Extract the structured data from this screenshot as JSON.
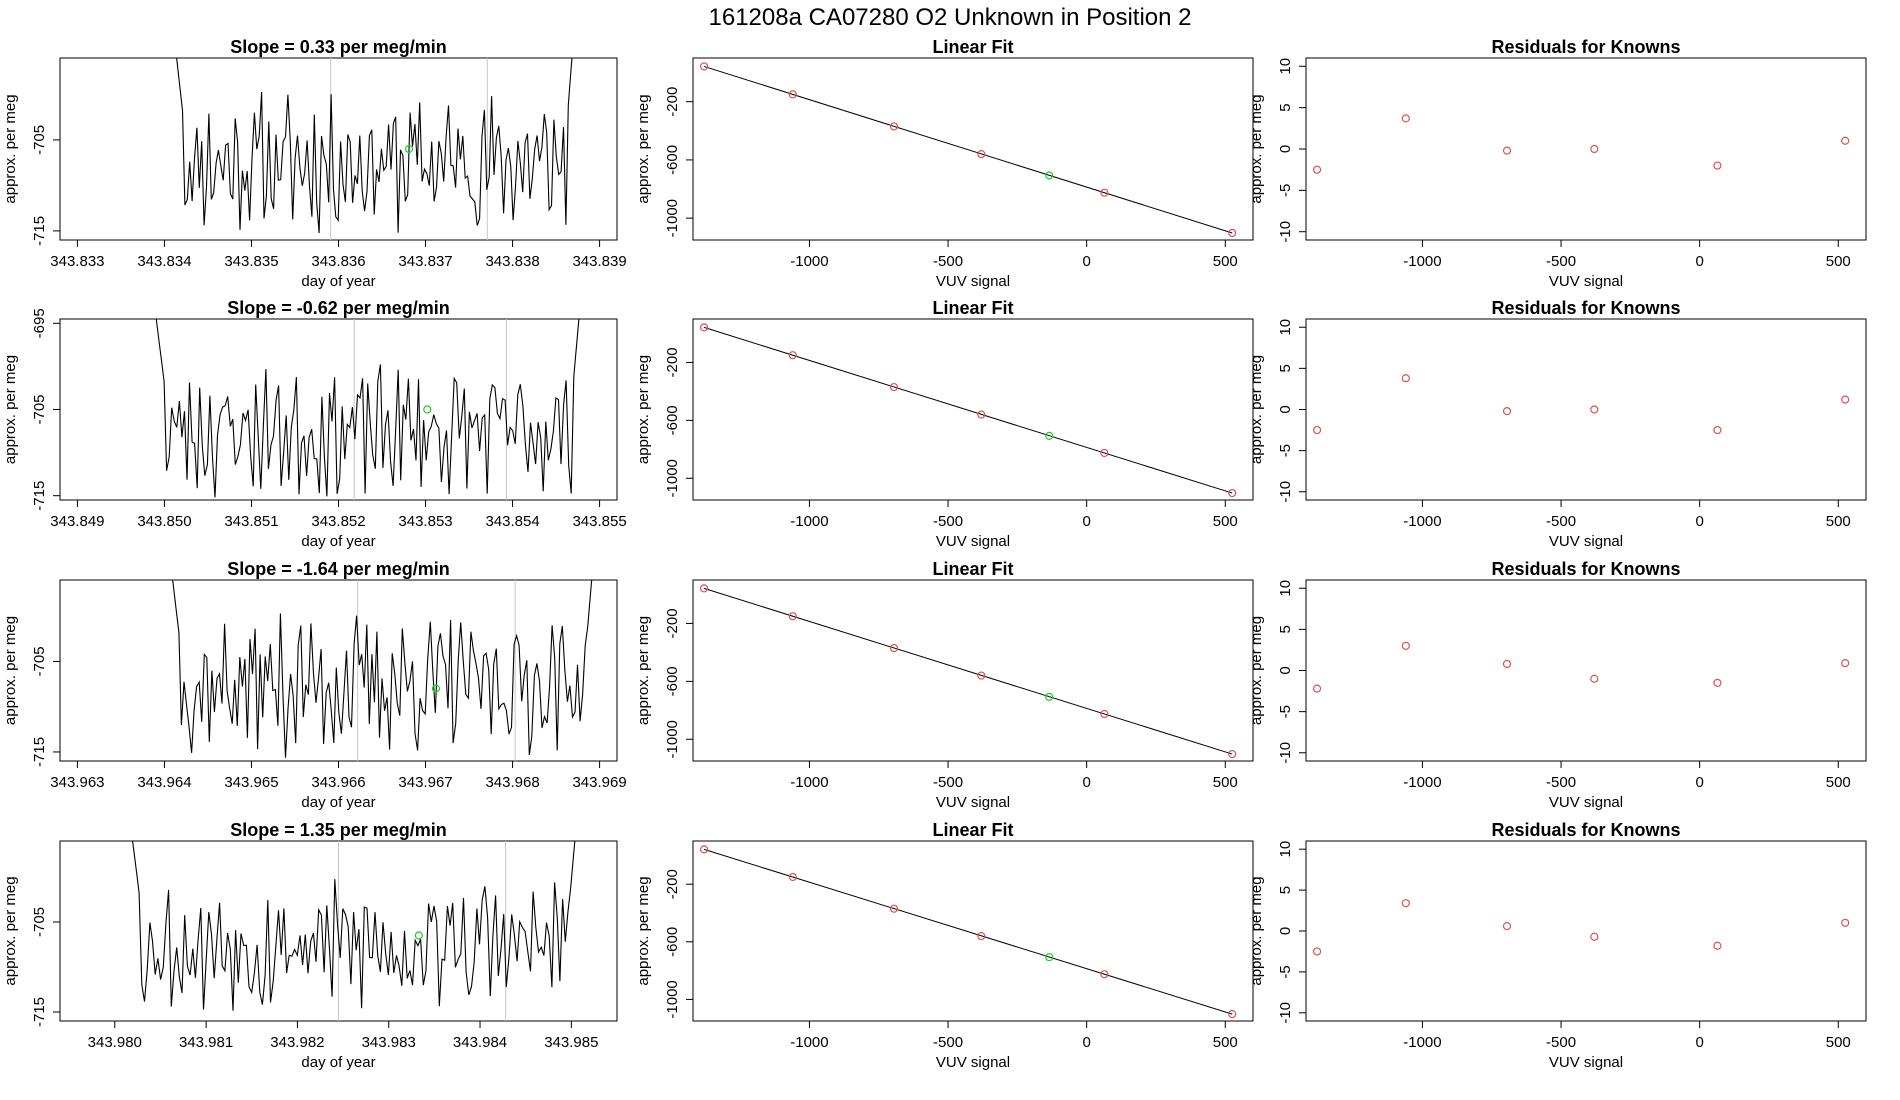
{
  "page_title": "161208a      CA07280    O2 Unknown in Position  2",
  "colors": {
    "known": "#d9534f",
    "unknown": "#22cc22",
    "line": "#000000",
    "marker": "#c8c8c8"
  },
  "chart_data": [
    {
      "row": 1,
      "timeseries": {
        "type": "line",
        "title": "Slope =  0.33  per meg/min",
        "xlabel": "day of year",
        "ylabel": "approx. per meg",
        "xlim": [
          343.8328,
          343.8392
        ],
        "ylim": [
          -716,
          -696
        ],
        "xticks": [
          "343.833",
          "343.834",
          "343.835",
          "343.836",
          "343.837",
          "343.838",
          "343.839"
        ],
        "yticks": [
          "-705",
          "-715"
        ],
        "ytick_values": [
          -705,
          -715
        ],
        "x_start": 343.83407,
        "x_end": 343.83875,
        "seed": 11,
        "vlines": [
          343.83591,
          343.83771
        ],
        "unknown_point": {
          "x": 343.83681,
          "y": -706
        }
      },
      "linear_fit": {
        "type": "scatter",
        "title": "Linear Fit",
        "xlabel": "VUV signal",
        "ylabel": "approx. per meg",
        "xlim": [
          -1420,
          600
        ],
        "ylim": [
          -1150,
          100
        ],
        "xticks": [
          "-1000",
          "-500",
          "0",
          "500"
        ],
        "xtick_values": [
          -1000,
          -500,
          0,
          500
        ],
        "yticks": [
          "-200",
          "-600",
          "-1000"
        ],
        "ytick_values": [
          -200,
          -600,
          -1000
        ],
        "fit_line": {
          "x1": -1380,
          "y1": 42,
          "x2": 525,
          "y2": -1102
        },
        "known_points": [
          {
            "x": -1380,
            "y": 42
          },
          {
            "x": -1060,
            "y": -150
          },
          {
            "x": -695,
            "y": -370
          },
          {
            "x": -380,
            "y": -560
          },
          {
            "x": 64,
            "y": -825
          },
          {
            "x": 525,
            "y": -1102
          }
        ],
        "unknown_points": [
          {
            "x": -135,
            "y": -707
          }
        ]
      },
      "residuals": {
        "type": "scatter",
        "title": "Residuals for Knowns",
        "xlabel": "VUV signal",
        "ylabel": "approx. per meg",
        "xlim": [
          -1420,
          600
        ],
        "ylim": [
          -11,
          11
        ],
        "xticks": [
          "-1000",
          "-500",
          "0",
          "500"
        ],
        "xtick_values": [
          -1000,
          -500,
          0,
          500
        ],
        "yticks": [
          "10",
          "5",
          "0",
          "-5",
          "-10"
        ],
        "ytick_values": [
          10,
          5,
          0,
          -5,
          -10
        ],
        "points": [
          {
            "x": -1380,
            "y": -2.5
          },
          {
            "x": -1060,
            "y": 3.7
          },
          {
            "x": -695,
            "y": -0.2
          },
          {
            "x": -380,
            "y": 0
          },
          {
            "x": 64,
            "y": -2
          },
          {
            "x": 525,
            "y": 1
          }
        ]
      }
    },
    {
      "row": 2,
      "timeseries": {
        "type": "line",
        "title": "Slope =  -0.62  per meg/min",
        "xlabel": "day of year",
        "ylabel": "approx. per meg",
        "xlim": [
          343.8488,
          343.8552
        ],
        "ylim": [
          -715.5,
          -694.5
        ],
        "xticks": [
          "343.849",
          "343.850",
          "343.851",
          "343.852",
          "343.853",
          "343.854",
          "343.855"
        ],
        "yticks": [
          "-695",
          "-705",
          "-715"
        ],
        "ytick_values": [
          -695,
          -705,
          -715
        ],
        "x_start": 343.84985,
        "x_end": 343.85482,
        "seed": 23,
        "vlines": [
          343.85218,
          343.85393
        ],
        "unknown_point": {
          "x": 343.85302,
          "y": -705
        }
      },
      "linear_fit": {
        "type": "scatter",
        "title": "Linear Fit",
        "xlabel": "VUV signal",
        "ylabel": "approx. per meg",
        "xlim": [
          -1420,
          600
        ],
        "ylim": [
          -1150,
          100
        ],
        "xticks": [
          "-1000",
          "-500",
          "0",
          "500"
        ],
        "xtick_values": [
          -1000,
          -500,
          0,
          500
        ],
        "yticks": [
          "-200",
          "-600",
          "-1000"
        ],
        "ytick_values": [
          -200,
          -600,
          -1000
        ],
        "fit_line": {
          "x1": -1380,
          "y1": 42,
          "x2": 525,
          "y2": -1102
        },
        "known_points": [
          {
            "x": -1380,
            "y": 42
          },
          {
            "x": -1060,
            "y": -150
          },
          {
            "x": -695,
            "y": -370
          },
          {
            "x": -380,
            "y": -560
          },
          {
            "x": 64,
            "y": -825
          },
          {
            "x": 525,
            "y": -1102
          }
        ],
        "unknown_points": [
          {
            "x": -135,
            "y": -707
          }
        ]
      },
      "residuals": {
        "type": "scatter",
        "title": "Residuals for Knowns",
        "xlabel": "VUV signal",
        "ylabel": "approx. per meg",
        "xlim": [
          -1420,
          600
        ],
        "ylim": [
          -11,
          11
        ],
        "xticks": [
          "-1000",
          "-500",
          "0",
          "500"
        ],
        "xtick_values": [
          -1000,
          -500,
          0,
          500
        ],
        "yticks": [
          "10",
          "5",
          "0",
          "-5",
          "-10"
        ],
        "ytick_values": [
          10,
          5,
          0,
          -5,
          -10
        ],
        "points": [
          {
            "x": -1380,
            "y": -2.5
          },
          {
            "x": -1060,
            "y": 3.8
          },
          {
            "x": -695,
            "y": -0.2
          },
          {
            "x": -380,
            "y": 0
          },
          {
            "x": 64,
            "y": -2.5
          },
          {
            "x": 525,
            "y": 1.2
          }
        ]
      }
    },
    {
      "row": 3,
      "timeseries": {
        "type": "line",
        "title": "Slope =  -1.64  per meg/min",
        "xlabel": "day of year",
        "ylabel": "approx. per meg",
        "xlim": [
          343.9628,
          343.9692
        ],
        "ylim": [
          -716,
          -696
        ],
        "xticks": [
          "343.963",
          "343.964",
          "343.965",
          "343.966",
          "343.967",
          "343.968",
          "343.969"
        ],
        "yticks": [
          "-705",
          "-715"
        ],
        "ytick_values": [
          -705,
          -715
        ],
        "x_start": 343.96402,
        "x_end": 343.96898,
        "seed": 37,
        "vlines": [
          343.96622,
          343.96803
        ],
        "unknown_point": {
          "x": 343.96712,
          "y": -708
        }
      },
      "linear_fit": {
        "type": "scatter",
        "title": "Linear Fit",
        "xlabel": "VUV signal",
        "ylabel": "approx. per meg",
        "xlim": [
          -1420,
          600
        ],
        "ylim": [
          -1150,
          100
        ],
        "xticks": [
          "-1000",
          "-500",
          "0",
          "500"
        ],
        "xtick_values": [
          -1000,
          -500,
          0,
          500
        ],
        "yticks": [
          "-200",
          "-600",
          "-1000"
        ],
        "ytick_values": [
          -200,
          -600,
          -1000
        ],
        "fit_line": {
          "x1": -1380,
          "y1": 42,
          "x2": 525,
          "y2": -1102
        },
        "known_points": [
          {
            "x": -1380,
            "y": 42
          },
          {
            "x": -1060,
            "y": -150
          },
          {
            "x": -695,
            "y": -370
          },
          {
            "x": -380,
            "y": -560
          },
          {
            "x": 64,
            "y": -825
          },
          {
            "x": 525,
            "y": -1102
          }
        ],
        "unknown_points": [
          {
            "x": -135,
            "y": -707
          }
        ]
      },
      "residuals": {
        "type": "scatter",
        "title": "Residuals for Knowns",
        "xlabel": "VUV signal",
        "ylabel": "approx. per meg",
        "xlim": [
          -1420,
          600
        ],
        "ylim": [
          -11,
          11
        ],
        "xticks": [
          "-1000",
          "-500",
          "0",
          "500"
        ],
        "xtick_values": [
          -1000,
          -500,
          0,
          500
        ],
        "yticks": [
          "10",
          "5",
          "0",
          "-5",
          "-10"
        ],
        "ytick_values": [
          10,
          5,
          0,
          -5,
          -10
        ],
        "points": [
          {
            "x": -1380,
            "y": -2.2
          },
          {
            "x": -1060,
            "y": 3
          },
          {
            "x": -695,
            "y": 0.8
          },
          {
            "x": -380,
            "y": -1
          },
          {
            "x": 64,
            "y": -1.5
          },
          {
            "x": 525,
            "y": 0.9
          }
        ]
      }
    },
    {
      "row": 4,
      "timeseries": {
        "type": "line",
        "title": "Slope =  1.35  per meg/min",
        "xlabel": "day of year",
        "ylabel": "approx. per meg",
        "xlim": [
          343.9794,
          343.9855
        ],
        "ylim": [
          -716,
          -696
        ],
        "xticks": [
          "343.980",
          "343.981",
          "343.982",
          "343.983",
          "343.984",
          "343.985"
        ],
        "yticks": [
          "-705",
          "-715"
        ],
        "ytick_values": [
          -705,
          -715
        ],
        "x_start": 343.98012,
        "x_end": 343.98511,
        "seed": 53,
        "vlines": [
          343.98245,
          343.98428
        ],
        "unknown_point": {
          "x": 343.98333,
          "y": -706.5
        }
      },
      "linear_fit": {
        "type": "scatter",
        "title": "Linear Fit",
        "xlabel": "VUV signal",
        "ylabel": "approx. per meg",
        "xlim": [
          -1420,
          600
        ],
        "ylim": [
          -1150,
          100
        ],
        "xticks": [
          "-1000",
          "-500",
          "0",
          "500"
        ],
        "xtick_values": [
          -1000,
          -500,
          0,
          500
        ],
        "yticks": [
          "-200",
          "-600",
          "-1000"
        ],
        "ytick_values": [
          -200,
          -600,
          -1000
        ],
        "fit_line": {
          "x1": -1380,
          "y1": 42,
          "x2": 525,
          "y2": -1102
        },
        "known_points": [
          {
            "x": -1380,
            "y": 42
          },
          {
            "x": -1060,
            "y": -150
          },
          {
            "x": -695,
            "y": -370
          },
          {
            "x": -380,
            "y": -560
          },
          {
            "x": 64,
            "y": -825
          },
          {
            "x": 525,
            "y": -1102
          }
        ],
        "unknown_points": [
          {
            "x": -135,
            "y": -707
          }
        ]
      },
      "residuals": {
        "type": "scatter",
        "title": "Residuals for Knowns",
        "xlabel": "VUV signal",
        "ylabel": "approx. per meg",
        "xlim": [
          -1420,
          600
        ],
        "ylim": [
          -11,
          11
        ],
        "xticks": [
          "-1000",
          "-500",
          "0",
          "500"
        ],
        "xtick_values": [
          -1000,
          -500,
          0,
          500
        ],
        "yticks": [
          "10",
          "5",
          "0",
          "-5",
          "-10"
        ],
        "ytick_values": [
          10,
          5,
          0,
          -5,
          -10
        ],
        "points": [
          {
            "x": -1380,
            "y": -2.5
          },
          {
            "x": -1060,
            "y": 3.4
          },
          {
            "x": -695,
            "y": 0.6
          },
          {
            "x": -380,
            "y": -0.7
          },
          {
            "x": 64,
            "y": -1.8
          },
          {
            "x": 525,
            "y": 1
          }
        ]
      }
    }
  ]
}
